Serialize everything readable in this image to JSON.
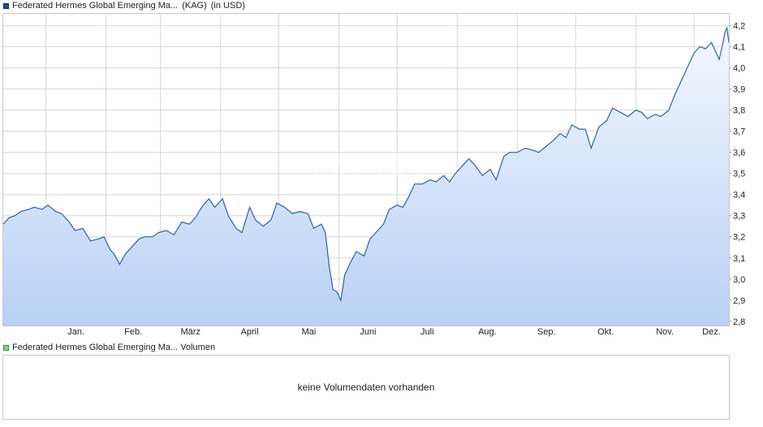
{
  "legend": {
    "price_label": "Federated Hermes Global Emerging Ma...",
    "price_type": "(KAG)",
    "price_currency": "(in USD)",
    "volume_label": "Federated Hermes Global Emerging Ma... Volumen"
  },
  "volume_panel": {
    "message": "keine Volumendaten vorhanden"
  },
  "colors": {
    "line": "#2e5fae",
    "fill_top": "#f4f8fe",
    "fill_bottom": "#b9d0f5",
    "grid": "#d6d6d6",
    "price_swatch": "#1f4e9c",
    "volume_swatch": "#7fd37f"
  },
  "chart_data": {
    "type": "area",
    "series_name": "Federated Hermes Global Emerging Ma... (KAG) (in USD)",
    "y_ticks": [
      "2,8",
      "2,9",
      "3,0",
      "3,1",
      "3,2",
      "3,3",
      "3,4",
      "3,5",
      "3,6",
      "3,7",
      "3,8",
      "3,9",
      "4,0",
      "4,1",
      "4,2"
    ],
    "ylim": [
      2.78,
      4.26
    ],
    "x_ticks": [
      "Jan.",
      "Feb.",
      "März",
      "April",
      "Mai",
      "Juni",
      "Juli",
      "Aug.",
      "Sep.",
      "Okt.",
      "Nov.",
      "Dez."
    ],
    "x_tick_dates": [
      "2025-01-01",
      "2025-02-01",
      "2025-03-01",
      "2025-04-01",
      "2025-05-01",
      "2025-06-01",
      "2025-07-01",
      "2025-08-01",
      "2025-09-01",
      "2025-10-01",
      "2025-11-01",
      "2025-12-01"
    ],
    "xlim": [
      "2024-12-10",
      "2025-12-19"
    ],
    "grid": true,
    "points": [
      [
        "2024-12-10",
        3.26
      ],
      [
        "2024-12-13",
        3.29
      ],
      [
        "2024-12-16",
        3.3
      ],
      [
        "2024-12-19",
        3.32
      ],
      [
        "2024-12-23",
        3.33
      ],
      [
        "2024-12-26",
        3.34
      ],
      [
        "2024-12-30",
        3.33
      ],
      [
        "2025-01-02",
        3.35
      ],
      [
        "2025-01-06",
        3.32
      ],
      [
        "2025-01-09",
        3.31
      ],
      [
        "2025-01-13",
        3.27
      ],
      [
        "2025-01-16",
        3.23
      ],
      [
        "2025-01-20",
        3.24
      ],
      [
        "2025-01-24",
        3.18
      ],
      [
        "2025-01-28",
        3.19
      ],
      [
        "2025-01-31",
        3.2
      ],
      [
        "2025-02-03",
        3.14
      ],
      [
        "2025-02-05",
        3.12
      ],
      [
        "2025-02-08",
        3.07
      ],
      [
        "2025-02-11",
        3.12
      ],
      [
        "2025-02-14",
        3.15
      ],
      [
        "2025-02-18",
        3.19
      ],
      [
        "2025-02-21",
        3.2
      ],
      [
        "2025-02-25",
        3.2
      ],
      [
        "2025-02-28",
        3.22
      ],
      [
        "2025-03-04",
        3.23
      ],
      [
        "2025-03-08",
        3.21
      ],
      [
        "2025-03-12",
        3.27
      ],
      [
        "2025-03-16",
        3.26
      ],
      [
        "2025-03-19",
        3.29
      ],
      [
        "2025-03-23",
        3.35
      ],
      [
        "2025-03-26",
        3.38
      ],
      [
        "2025-03-29",
        3.34
      ],
      [
        "2025-04-02",
        3.38
      ],
      [
        "2025-04-05",
        3.3
      ],
      [
        "2025-04-09",
        3.24
      ],
      [
        "2025-04-12",
        3.22
      ],
      [
        "2025-04-16",
        3.34
      ],
      [
        "2025-04-19",
        3.28
      ],
      [
        "2025-04-23",
        3.25
      ],
      [
        "2025-04-27",
        3.28
      ],
      [
        "2025-04-30",
        3.36
      ],
      [
        "2025-05-04",
        3.34
      ],
      [
        "2025-05-08",
        3.31
      ],
      [
        "2025-05-12",
        3.32
      ],
      [
        "2025-05-16",
        3.31
      ],
      [
        "2025-05-19",
        3.24
      ],
      [
        "2025-05-23",
        3.26
      ],
      [
        "2025-05-25",
        3.22
      ],
      [
        "2025-05-27",
        3.06
      ],
      [
        "2025-05-29",
        2.95
      ],
      [
        "2025-05-31",
        2.94
      ],
      [
        "2025-06-02",
        2.9
      ],
      [
        "2025-06-04",
        3.02
      ],
      [
        "2025-06-07",
        3.08
      ],
      [
        "2025-06-10",
        3.13
      ],
      [
        "2025-06-14",
        3.11
      ],
      [
        "2025-06-17",
        3.19
      ],
      [
        "2025-06-20",
        3.22
      ],
      [
        "2025-06-24",
        3.26
      ],
      [
        "2025-06-27",
        3.33
      ],
      [
        "2025-07-01",
        3.35
      ],
      [
        "2025-07-04",
        3.34
      ],
      [
        "2025-07-07",
        3.39
      ],
      [
        "2025-07-10",
        3.45
      ],
      [
        "2025-07-14",
        3.45
      ],
      [
        "2025-07-18",
        3.47
      ],
      [
        "2025-07-21",
        3.46
      ],
      [
        "2025-07-25",
        3.49
      ],
      [
        "2025-07-28",
        3.46
      ],
      [
        "2025-07-31",
        3.5
      ],
      [
        "2025-08-04",
        3.54
      ],
      [
        "2025-08-07",
        3.57
      ],
      [
        "2025-08-10",
        3.54
      ],
      [
        "2025-08-14",
        3.49
      ],
      [
        "2025-08-18",
        3.52
      ],
      [
        "2025-08-21",
        3.47
      ],
      [
        "2025-08-25",
        3.58
      ],
      [
        "2025-08-28",
        3.6
      ],
      [
        "2025-09-01",
        3.6
      ],
      [
        "2025-09-05",
        3.62
      ],
      [
        "2025-09-09",
        3.61
      ],
      [
        "2025-09-12",
        3.6
      ],
      [
        "2025-09-16",
        3.63
      ],
      [
        "2025-09-20",
        3.66
      ],
      [
        "2025-09-23",
        3.69
      ],
      [
        "2025-09-26",
        3.67
      ],
      [
        "2025-09-29",
        3.73
      ],
      [
        "2025-10-03",
        3.71
      ],
      [
        "2025-10-06",
        3.71
      ],
      [
        "2025-10-09",
        3.62
      ],
      [
        "2025-10-13",
        3.72
      ],
      [
        "2025-10-17",
        3.75
      ],
      [
        "2025-10-20",
        3.81
      ],
      [
        "2025-10-24",
        3.79
      ],
      [
        "2025-10-28",
        3.77
      ],
      [
        "2025-11-01",
        3.8
      ],
      [
        "2025-11-04",
        3.79
      ],
      [
        "2025-11-07",
        3.76
      ],
      [
        "2025-11-11",
        3.78
      ],
      [
        "2025-11-14",
        3.77
      ],
      [
        "2025-11-18",
        3.8
      ],
      [
        "2025-11-21",
        3.87
      ],
      [
        "2025-11-25",
        3.95
      ],
      [
        "2025-11-28",
        4.01
      ],
      [
        "2025-12-01",
        4.07
      ],
      [
        "2025-12-04",
        4.1
      ],
      [
        "2025-12-07",
        4.09
      ],
      [
        "2025-12-10",
        4.12
      ],
      [
        "2025-12-12",
        4.08
      ],
      [
        "2025-12-14",
        4.04
      ],
      [
        "2025-12-16",
        4.12
      ],
      [
        "2025-12-17",
        4.17
      ],
      [
        "2025-12-18",
        4.19
      ],
      [
        "2025-12-19",
        4.12
      ]
    ]
  }
}
